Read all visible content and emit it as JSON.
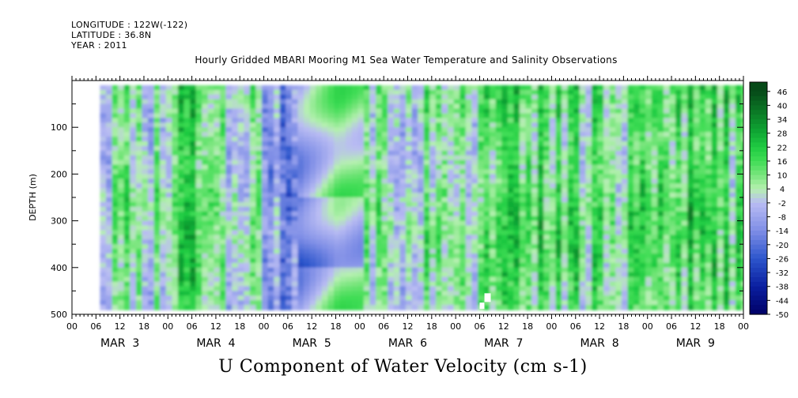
{
  "meta": {
    "longitude": "LONGITUDE : 122W(-122)",
    "latitude": "LATITUDE : 36.8N",
    "year": "YEAR : 2011"
  },
  "chart_data": {
    "type": "heatmap",
    "title": "Hourly Gridded MBARI Mooring M1 Sea Water Temperature and Salinity Observations",
    "variable_title": "U Component of Water Velocity (cm s-1)",
    "ylabel": "DEPTH (m)",
    "ylim": [
      500,
      0
    ],
    "y_ticks": [
      100,
      200,
      300,
      400,
      500
    ],
    "x_hour_ticks": [
      "00",
      "06",
      "12",
      "18",
      "00",
      "06",
      "12",
      "18",
      "00",
      "06",
      "12",
      "18",
      "00",
      "06",
      "12",
      "18",
      "00",
      "06",
      "12",
      "18",
      "00",
      "06",
      "12",
      "18",
      "00",
      "06",
      "12",
      "18",
      "00"
    ],
    "x_day_labels": [
      "MAR 3",
      "MAR 4",
      "MAR 5",
      "MAR 6",
      "MAR 7",
      "MAR 8",
      "MAR 9"
    ],
    "data_extent": {
      "time_start_hour": 7,
      "time_end_hour": 168,
      "depth_top": 10,
      "depth_bottom": 490
    },
    "colorbar": {
      "labels": [
        46,
        40,
        34,
        28,
        22,
        16,
        10,
        4,
        -2,
        -8,
        -14,
        -20,
        -26,
        -32,
        -38,
        -44,
        -50
      ],
      "range": [
        -50,
        50
      ],
      "stops": [
        {
          "v": -50,
          "color": "#000066"
        },
        {
          "v": -38,
          "color": "#0a1fa0"
        },
        {
          "v": -26,
          "color": "#2d56cc"
        },
        {
          "v": -14,
          "color": "#7f8ee6"
        },
        {
          "v": -2,
          "color": "#b9bcf3"
        },
        {
          "v": 4,
          "color": "#b5f0b0"
        },
        {
          "v": 10,
          "color": "#78e57c"
        },
        {
          "v": 16,
          "color": "#40dd55"
        },
        {
          "v": 22,
          "color": "#1fcb42"
        },
        {
          "v": 28,
          "color": "#10a935"
        },
        {
          "v": 34,
          "color": "#0c8a2b"
        },
        {
          "v": 46,
          "color": "#064a18"
        }
      ]
    },
    "field_profile": {
      "time_hours": [
        7,
        14,
        20,
        26,
        31,
        36,
        44,
        52,
        56,
        60,
        66,
        72,
        80,
        88,
        94,
        100,
        108,
        112,
        118,
        124,
        132,
        140,
        148,
        156,
        160,
        168
      ],
      "mean_u": [
        -2,
        8,
        4,
        14,
        16,
        2,
        4,
        -10,
        -14,
        -6,
        6,
        2,
        4,
        6,
        12,
        8,
        10,
        18,
        14,
        10,
        12,
        10,
        12,
        20,
        14,
        10
      ]
    }
  }
}
